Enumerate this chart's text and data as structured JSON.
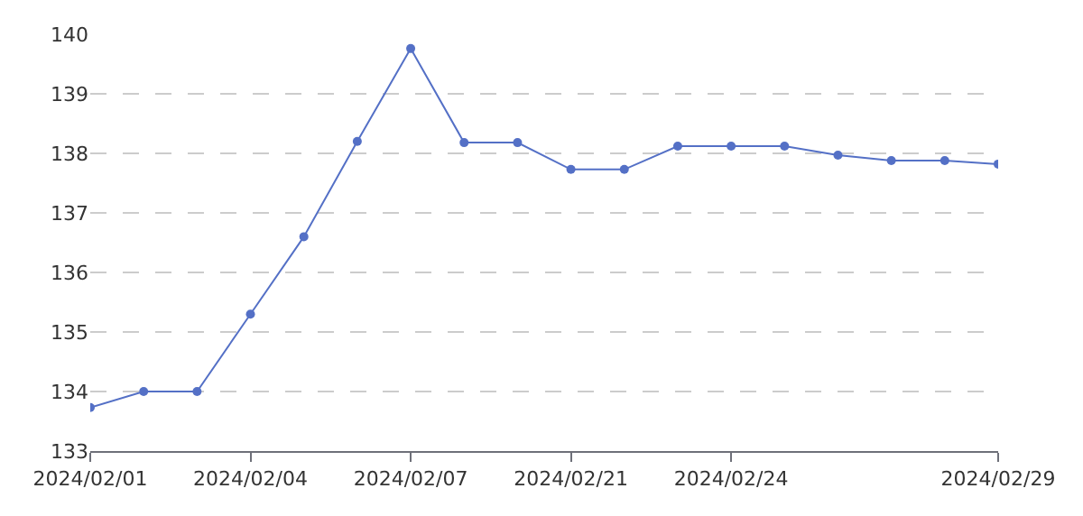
{
  "chart_data": {
    "type": "line",
    "categories": [
      "2024/02/01",
      null,
      null,
      "2024/02/04",
      null,
      null,
      "2024/02/07",
      null,
      null,
      "2024/02/21",
      null,
      null,
      "2024/02/24",
      null,
      null,
      null,
      null,
      "2024/02/29"
    ],
    "series": [
      {
        "color": "#5470c6",
        "values": [
          133.73,
          134.0,
          134.0,
          135.3,
          136.6,
          138.2,
          139.76,
          138.18,
          138.18,
          137.73,
          137.73,
          138.12,
          138.12,
          138.12,
          137.97,
          137.88,
          137.88,
          137.82
        ]
      }
    ],
    "ylim": [
      133,
      140
    ],
    "yticks": [
      133,
      134,
      135,
      136,
      137,
      138,
      139,
      140
    ],
    "grid": "y",
    "marker": "circle",
    "line_style": "solid",
    "legend": false
  }
}
